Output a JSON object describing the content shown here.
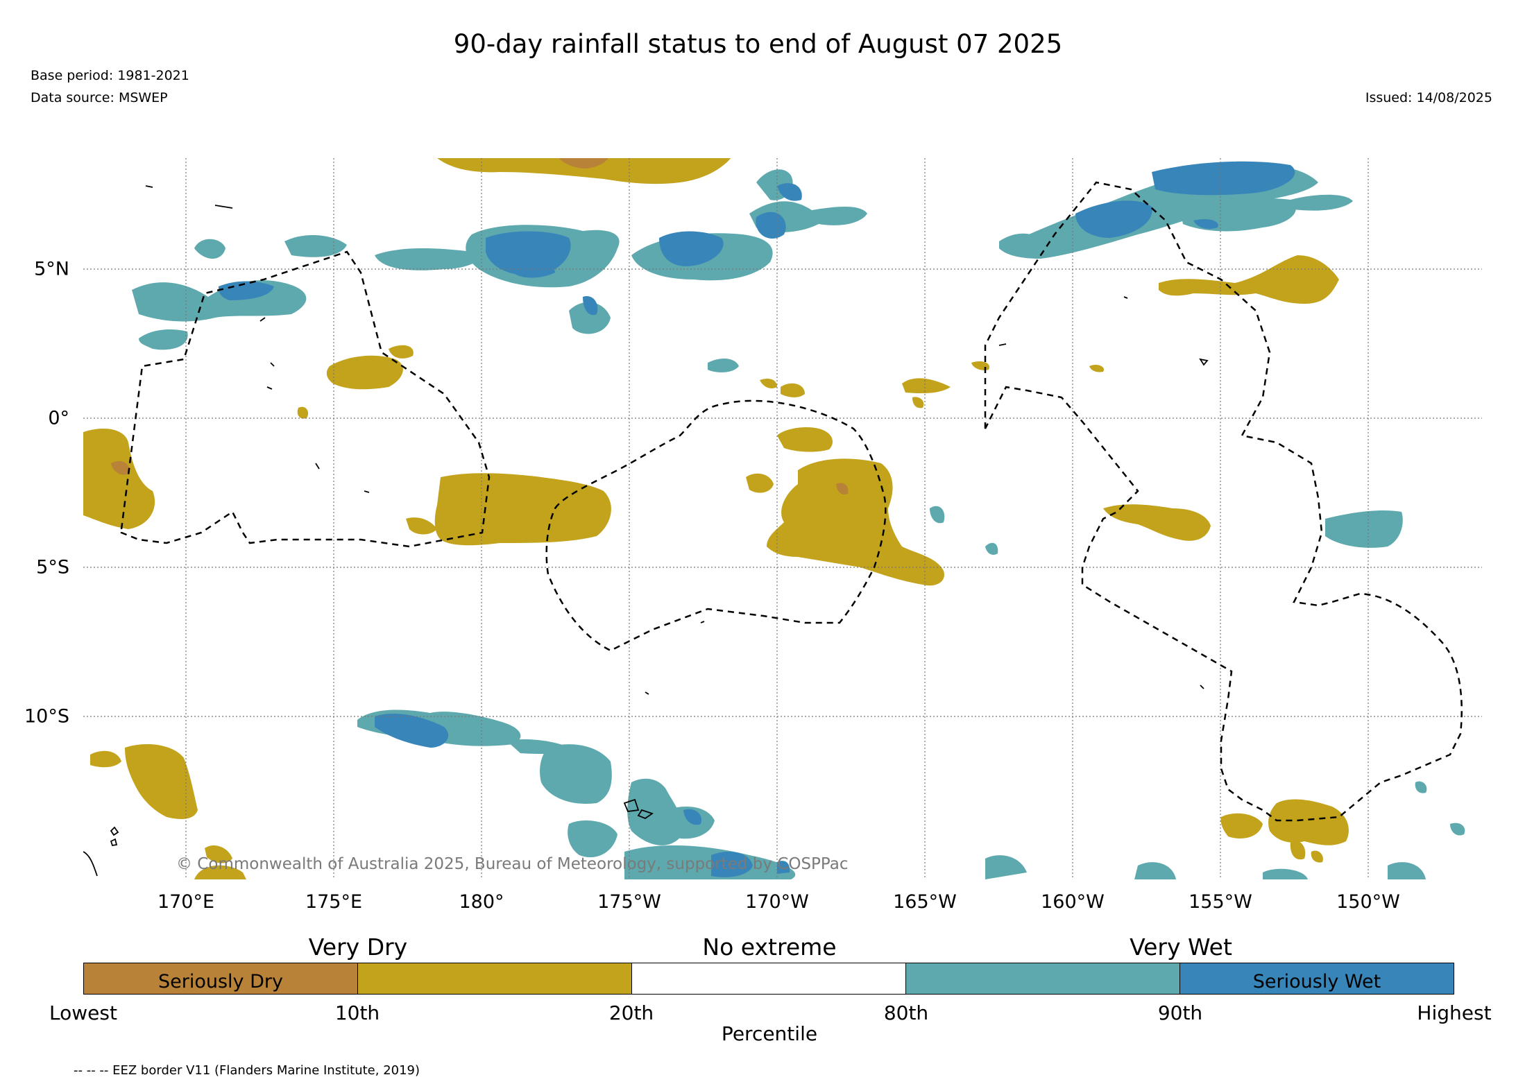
{
  "title": "90-day rainfall status to end of August 07 2025",
  "base_period": "Base period: 1981-2021",
  "data_source": "Data source: MSWEP",
  "issued": "Issued: 14/08/2025",
  "copyright": "© Commonwealth of Australia 2025, Bureau of Meteorology, supported by COSPPac",
  "lon_labels": [
    "170°E",
    "175°E",
    "180°",
    "175°W",
    "170°W",
    "165°W",
    "160°W",
    "155°W",
    "150°W"
  ],
  "lat_labels": [
    "5°N",
    "0°",
    "5°S",
    "10°S"
  ],
  "category_labels": [
    "Very Dry",
    "No extreme",
    "Very Wet"
  ],
  "colorbar_segments": [
    {
      "label": "Seriously Dry",
      "color": "#b88238"
    },
    {
      "label": "",
      "color": "#c2a31b"
    },
    {
      "label": "",
      "color": "#ffffff"
    },
    {
      "label": "",
      "color": "#5ea9ae"
    },
    {
      "label": "Seriously Wet",
      "color": "#3885b9"
    }
  ],
  "percentile_labels": [
    "Lowest",
    "10th",
    "20th",
    "80th",
    "90th",
    "Highest"
  ],
  "percentile_title": "Percentile",
  "footnote": "-- -- -- EEZ border V11 (Flanders Marine Institute, 2019)",
  "colors": {
    "seriously_dry": "#b88238",
    "very_dry": "#c2a31b",
    "no_extreme": "#ffffff",
    "very_wet": "#5ea9ae",
    "seriously_wet": "#3885b9"
  }
}
